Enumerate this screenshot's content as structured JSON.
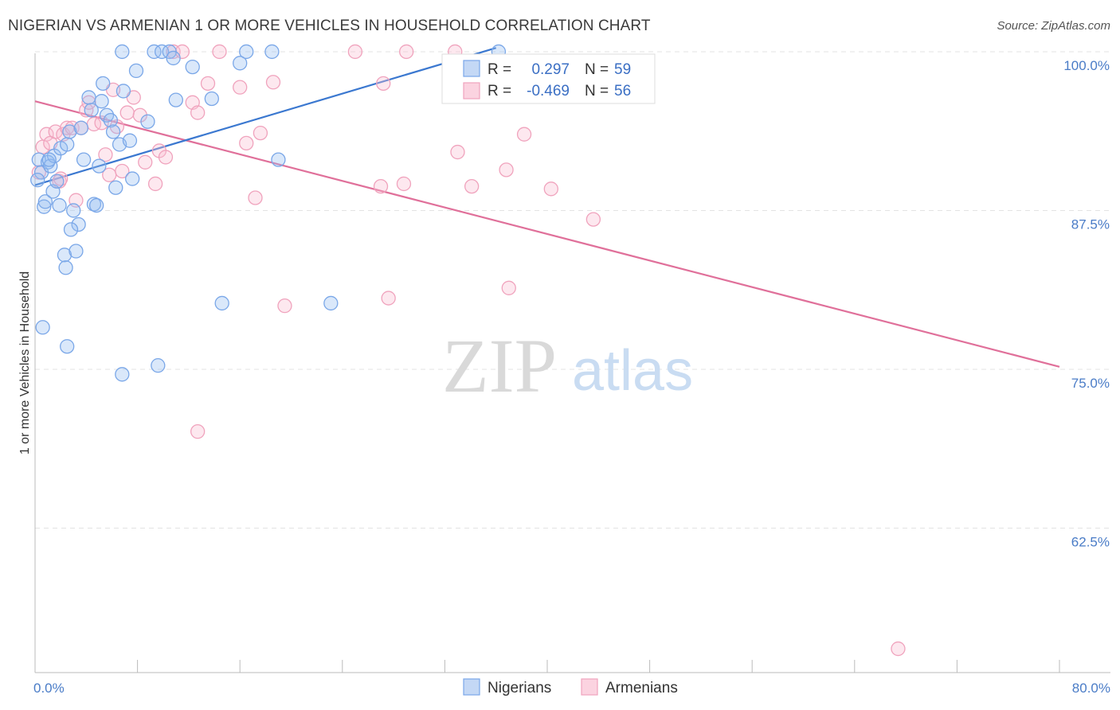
{
  "title": "NIGERIAN VS ARMENIAN 1 OR MORE VEHICLES IN HOUSEHOLD CORRELATION CHART",
  "source": "Source: ZipAtlas.com",
  "watermark": {
    "zip": "ZIP",
    "atlas": "atlas"
  },
  "chart_data": {
    "type": "scatter",
    "ylabel": "1 or more Vehicles in Household",
    "xlim": [
      0,
      80
    ],
    "ylim": [
      51.5,
      101
    ],
    "x_tick_labels": [
      {
        "value": 0,
        "label": "0.0%"
      },
      {
        "value": 80,
        "label": "80.0%"
      }
    ],
    "y_tick_labels": [
      {
        "value": 100,
        "label": "100.0%"
      },
      {
        "value": 87.5,
        "label": "87.5%"
      },
      {
        "value": 75,
        "label": "75.0%"
      },
      {
        "value": 62.5,
        "label": "62.5%"
      }
    ],
    "colors": {
      "nigerians": "#7aa7e8",
      "armenians": "#f0a3bd",
      "nigerians_line": "#3b78d0",
      "armenians_line": "#e0709a"
    },
    "legend_top": [
      {
        "r_label": "R =",
        "r_value": "0.297",
        "n_label": "N =",
        "n_value": "59"
      },
      {
        "r_label": "R =",
        "r_value": "-0.469",
        "n_label": "N =",
        "n_value": "56"
      }
    ],
    "series": [
      {
        "name": "Nigerians",
        "trend": [
          [
            0,
            89.5
          ],
          [
            36,
            100.3
          ]
        ],
        "points": [
          [
            0.3,
            91.5
          ],
          [
            0.5,
            90.5
          ],
          [
            0.7,
            87.8
          ],
          [
            0.8,
            88.2
          ],
          [
            1.0,
            91.3
          ],
          [
            1.2,
            91.0
          ],
          [
            1.4,
            89.0
          ],
          [
            1.5,
            91.8
          ],
          [
            1.7,
            89.8
          ],
          [
            1.9,
            87.9
          ],
          [
            2.0,
            92.4
          ],
          [
            2.3,
            84.0
          ],
          [
            2.5,
            92.7
          ],
          [
            2.7,
            93.7
          ],
          [
            3.0,
            87.5
          ],
          [
            3.2,
            84.3
          ],
          [
            3.4,
            86.4
          ],
          [
            3.6,
            94.0
          ],
          [
            3.8,
            91.5
          ],
          [
            4.2,
            96.4
          ],
          [
            4.4,
            95.4
          ],
          [
            4.6,
            88.0
          ],
          [
            4.8,
            87.9
          ],
          [
            5.0,
            91.0
          ],
          [
            5.2,
            96.1
          ],
          [
            5.3,
            97.5
          ],
          [
            5.6,
            95.0
          ],
          [
            5.9,
            94.6
          ],
          [
            6.1,
            93.7
          ],
          [
            6.3,
            89.3
          ],
          [
            6.6,
            92.7
          ],
          [
            6.9,
            96.9
          ],
          [
            7.4,
            93.0
          ],
          [
            7.6,
            90.0
          ],
          [
            7.9,
            98.5
          ],
          [
            8.8,
            94.5
          ],
          [
            9.3,
            100.0
          ],
          [
            9.9,
            100.0
          ],
          [
            10.5,
            100.0
          ],
          [
            10.8,
            99.5
          ],
          [
            11.0,
            96.2
          ],
          [
            12.3,
            98.8
          ],
          [
            13.8,
            96.3
          ],
          [
            16.0,
            99.1
          ],
          [
            16.5,
            100.0
          ],
          [
            18.5,
            100.0
          ],
          [
            19.0,
            91.5
          ],
          [
            0.6,
            78.3
          ],
          [
            2.4,
            83.0
          ],
          [
            2.5,
            76.8
          ],
          [
            6.8,
            74.6
          ],
          [
            9.6,
            75.3
          ],
          [
            14.6,
            80.2
          ],
          [
            23.1,
            80.2
          ],
          [
            36.2,
            100.0
          ],
          [
            6.8,
            100.0
          ],
          [
            0.2,
            89.9
          ],
          [
            1.1,
            91.5
          ],
          [
            2.8,
            86.0
          ]
        ]
      },
      {
        "name": "Armenians",
        "trend": [
          [
            0,
            96.1
          ],
          [
            80,
            75.2
          ]
        ],
        "points": [
          [
            0.3,
            90.5
          ],
          [
            0.6,
            92.5
          ],
          [
            0.9,
            93.5
          ],
          [
            1.2,
            92.8
          ],
          [
            1.6,
            93.7
          ],
          [
            1.9,
            89.8
          ],
          [
            2.2,
            93.5
          ],
          [
            2.5,
            94.0
          ],
          [
            2.9,
            94.0
          ],
          [
            3.2,
            88.3
          ],
          [
            3.6,
            94.0
          ],
          [
            4.0,
            95.4
          ],
          [
            4.2,
            96.0
          ],
          [
            4.6,
            94.3
          ],
          [
            5.2,
            94.4
          ],
          [
            5.5,
            91.9
          ],
          [
            5.8,
            90.3
          ],
          [
            6.1,
            97.0
          ],
          [
            6.8,
            90.6
          ],
          [
            7.2,
            95.2
          ],
          [
            7.7,
            96.4
          ],
          [
            8.2,
            95.0
          ],
          [
            8.6,
            91.3
          ],
          [
            9.4,
            89.6
          ],
          [
            9.7,
            92.2
          ],
          [
            10.2,
            91.7
          ],
          [
            10.8,
            100.0
          ],
          [
            11.5,
            100.0
          ],
          [
            12.3,
            96.0
          ],
          [
            12.7,
            95.2
          ],
          [
            13.5,
            97.5
          ],
          [
            14.4,
            100.0
          ],
          [
            16.0,
            97.2
          ],
          [
            16.5,
            92.8
          ],
          [
            17.2,
            88.5
          ],
          [
            17.6,
            93.6
          ],
          [
            18.6,
            97.6
          ],
          [
            19.5,
            80.0
          ],
          [
            25.0,
            100.0
          ],
          [
            27.0,
            89.4
          ],
          [
            27.2,
            97.5
          ],
          [
            27.6,
            80.6
          ],
          [
            29.0,
            100.0
          ],
          [
            28.8,
            89.6
          ],
          [
            32.8,
            100.0
          ],
          [
            33.0,
            92.1
          ],
          [
            34.1,
            89.4
          ],
          [
            36.8,
            90.7
          ],
          [
            37.0,
            81.4
          ],
          [
            38.2,
            93.5
          ],
          [
            40.3,
            89.2
          ],
          [
            43.6,
            86.8
          ],
          [
            12.7,
            70.1
          ],
          [
            67.4,
            53.0
          ],
          [
            6.4,
            94.1
          ],
          [
            2.0,
            90.0
          ]
        ]
      }
    ]
  },
  "bottom_legend": [
    {
      "name": "Nigerians"
    },
    {
      "name": "Armenians"
    }
  ]
}
